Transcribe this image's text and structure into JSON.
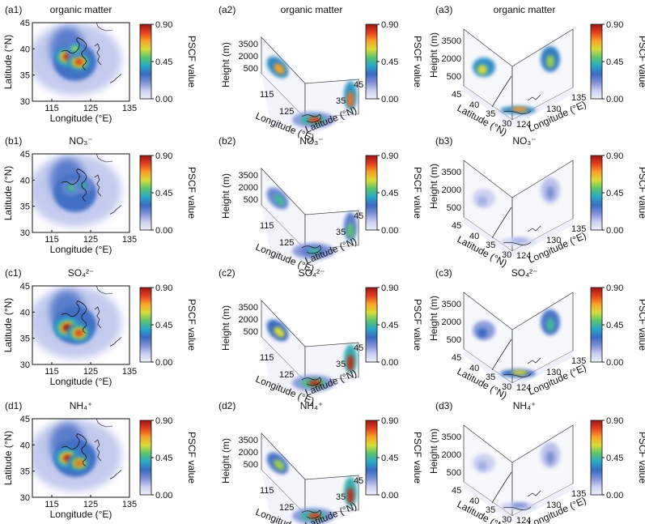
{
  "colorbar": {
    "label": "PSCF value",
    "ticks": [
      "0.90",
      "0.45",
      "0.00"
    ],
    "range": [
      0,
      0.9
    ],
    "stops": [
      "#eef0fa",
      "#c9cff0",
      "#7d8fd6",
      "#3a6bc2",
      "#2aa7c7",
      "#5cc46e",
      "#d8dc3a",
      "#f7a128",
      "#e2401f",
      "#9b1616"
    ]
  },
  "map2d": {
    "xlabel": "Longitude (°E)",
    "ylabel": "Latitude (°N)",
    "xticks": [
      "115",
      "125",
      "135"
    ],
    "yticks": [
      "45",
      "40",
      "35",
      "30"
    ]
  },
  "box_south": {
    "ylabel": "Height (m)",
    "zticks": [
      "3500",
      "2000",
      "500"
    ],
    "xlabel": "Longitude (°E)",
    "xticks": [
      "115",
      "125"
    ],
    "rlabel": "Latitude (°N)",
    "rticks": [
      "35",
      "45"
    ]
  },
  "box_east": {
    "ylabel": "Height (m)",
    "zticks": [
      "3500",
      "2000",
      "500"
    ],
    "latlabel": "Latitude (°N)",
    "latticks": [
      "45",
      "40",
      "35",
      "30"
    ],
    "lonlabel": "Longitude (°E)",
    "lonticks": [
      "124",
      "130",
      "135"
    ]
  },
  "rows": [
    {
      "species": "organic matter",
      "labels": [
        "(a1)",
        "(a2)",
        "(a3)"
      ]
    },
    {
      "species": "NO₃⁻",
      "labels": [
        "(b1)",
        "(b2)",
        "(b3)"
      ]
    },
    {
      "species": "SO₄²⁻",
      "labels": [
        "(c1)",
        "(c2)",
        "(c3)"
      ]
    },
    {
      "species": "NH₄⁺",
      "labels": [
        "(d1)",
        "(d2)",
        "(d3)"
      ]
    }
  ],
  "chart_data": {
    "type": "heatmap",
    "variable": "PSCF value",
    "value_range": [
      0,
      0.9
    ],
    "panels": [
      {
        "id": "a1",
        "species": "organic matter",
        "view": "2D map",
        "hotspots": [
          {
            "lon": 119,
            "lat": 38.5,
            "value": 0.85
          },
          {
            "lon": 122,
            "lat": 37.5,
            "value": 0.8
          },
          {
            "lon": 121,
            "lat": 40,
            "value": 0.55
          }
        ]
      },
      {
        "id": "a2",
        "species": "organic matter",
        "view": "3D south",
        "hotspots": [
          {
            "lon": 121,
            "lat": 37.5,
            "value": 0.8
          }
        ],
        "wall_maxima": [
          0.7,
          0.75
        ]
      },
      {
        "id": "a3",
        "species": "organic matter",
        "view": "3D east",
        "hotspots": [
          {
            "lon": 120,
            "lat": 37,
            "value": 0.7
          }
        ],
        "wall_maxima": [
          0.6,
          0.55
        ]
      },
      {
        "id": "b1",
        "species": "NO₃⁻",
        "view": "2D map",
        "hotspots": [
          {
            "lon": 120,
            "lat": 38.5,
            "value": 0.5
          },
          {
            "lon": 123,
            "lat": 39,
            "value": 0.45
          }
        ]
      },
      {
        "id": "b2",
        "species": "NO₃⁻",
        "view": "3D south",
        "hotspots": [
          {
            "lon": 121,
            "lat": 37.5,
            "value": 0.45
          }
        ],
        "wall_maxima": [
          0.45,
          0.5
        ]
      },
      {
        "id": "b3",
        "species": "NO₃⁻",
        "view": "3D east",
        "hotspots": [
          {
            "lon": 121,
            "lat": 37,
            "value": 0.15
          }
        ],
        "wall_maxima": [
          0.15,
          0.2
        ]
      },
      {
        "id": "c1",
        "species": "SO₄²⁻",
        "view": "2D map",
        "hotspots": [
          {
            "lon": 119,
            "lat": 37,
            "value": 0.9
          },
          {
            "lon": 122,
            "lat": 36,
            "value": 0.8
          }
        ]
      },
      {
        "id": "c2",
        "species": "SO₄²⁻",
        "view": "3D south",
        "hotspots": [
          {
            "lon": 121,
            "lat": 36.5,
            "value": 0.85
          }
        ],
        "wall_maxima": [
          0.6,
          0.85
        ]
      },
      {
        "id": "c3",
        "species": "SO₄²⁻",
        "view": "3D east",
        "hotspots": [
          {
            "lon": 124,
            "lat": 35,
            "value": 0.6
          }
        ],
        "wall_maxima": [
          0.3,
          0.45
        ]
      },
      {
        "id": "d1",
        "species": "NH₄⁺",
        "view": "2D map",
        "hotspots": [
          {
            "lon": 119,
            "lat": 37.5,
            "value": 0.85
          },
          {
            "lon": 122,
            "lat": 36.5,
            "value": 0.75
          }
        ]
      },
      {
        "id": "d2",
        "species": "NH₄⁺",
        "view": "3D south",
        "hotspots": [
          {
            "lon": 121,
            "lat": 37,
            "value": 0.8
          }
        ],
        "wall_maxima": [
          0.55,
          0.85
        ]
      },
      {
        "id": "d3",
        "species": "NH₄⁺",
        "view": "3D east",
        "hotspots": [
          {
            "lon": 120,
            "lat": 36,
            "value": 0.2
          }
        ],
        "wall_maxima": [
          0.15,
          0.2
        ]
      }
    ]
  }
}
